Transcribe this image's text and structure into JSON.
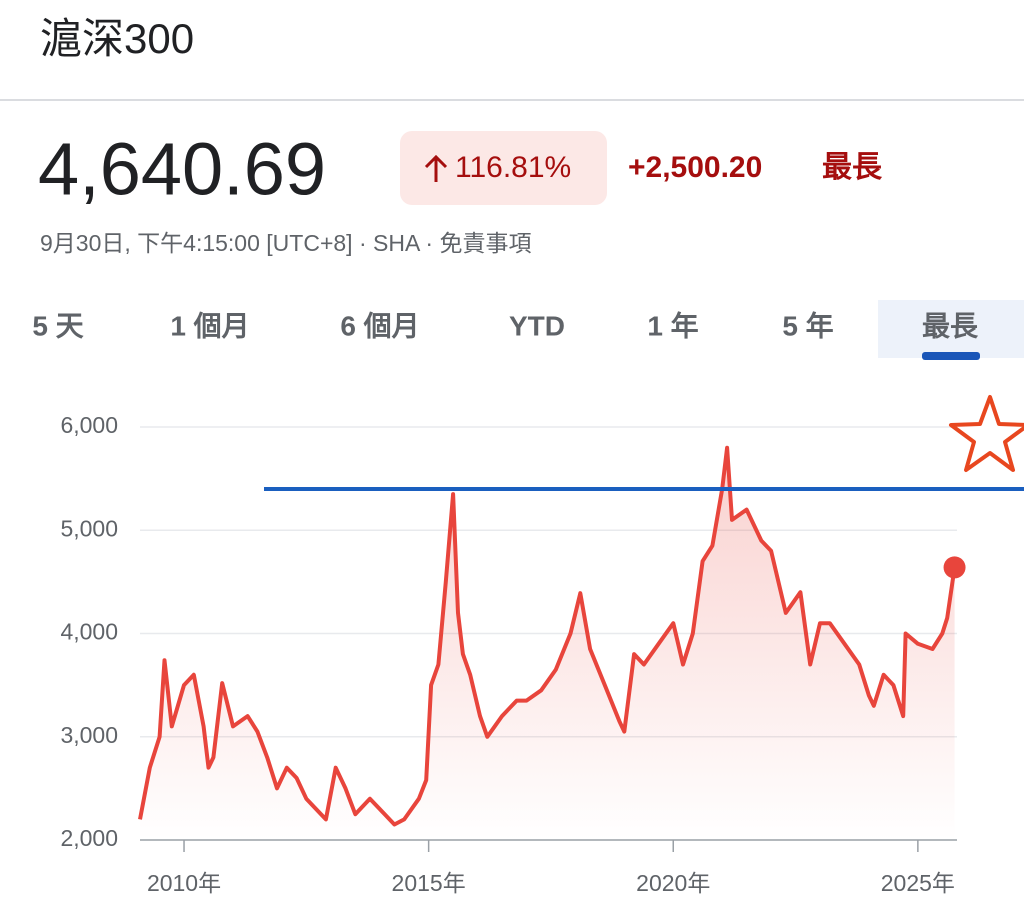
{
  "header": {
    "title": "滬深300"
  },
  "quote": {
    "price": "4,640.69",
    "change_percent": "116.81%",
    "change": "+2,500.20",
    "period": "最長",
    "subtitle": "9月30日, 下午4:15:00 [UTC+8] · SHA · 免責事項"
  },
  "tabs": {
    "items": [
      "5 天",
      "1 個月",
      "6 個月",
      "YTD",
      "1 年",
      "5 年",
      "最長"
    ],
    "selected": 6
  },
  "chart_data": {
    "type": "line",
    "x": [
      2009.1,
      2009.3,
      2009.5,
      2009.6,
      2009.75,
      2010.0,
      2010.2,
      2010.4,
      2010.5,
      2010.6,
      2010.78,
      2011.0,
      2011.3,
      2011.5,
      2011.7,
      2011.9,
      2012.1,
      2012.3,
      2012.5,
      2012.8,
      2012.9,
      2013.1,
      2013.3,
      2013.5,
      2013.8,
      2014.0,
      2014.3,
      2014.5,
      2014.8,
      2014.95,
      2015.05,
      2015.2,
      2015.35,
      2015.5,
      2015.6,
      2015.7,
      2015.85,
      2016.05,
      2016.2,
      2016.5,
      2016.8,
      2017.0,
      2017.3,
      2017.6,
      2017.9,
      2018.1,
      2018.3,
      2018.6,
      2018.9,
      2019.0,
      2019.2,
      2019.4,
      2019.7,
      2020.0,
      2020.2,
      2020.4,
      2020.6,
      2020.8,
      2021.0,
      2021.1,
      2021.2,
      2021.5,
      2021.8,
      2022.0,
      2022.3,
      2022.6,
      2022.8,
      2023.0,
      2023.2,
      2023.5,
      2023.8,
      2024.0,
      2024.1,
      2024.3,
      2024.5,
      2024.7,
      2024.75,
      2025.0,
      2025.3,
      2025.5,
      2025.6,
      2025.75
    ],
    "series": [
      {
        "color": "#e8453c",
        "values": [
          2200,
          2700,
          3000,
          3740,
          3100,
          3500,
          3600,
          3100,
          2700,
          2800,
          3520,
          3100,
          3200,
          3050,
          2800,
          2500,
          2700,
          2600,
          2400,
          2250,
          2200,
          2700,
          2500,
          2250,
          2400,
          2300,
          2150,
          2200,
          2400,
          2580,
          3500,
          3700,
          4500,
          5350,
          4200,
          3800,
          3600,
          3200,
          3000,
          3200,
          3350,
          3350,
          3450,
          3650,
          4000,
          4390,
          3850,
          3500,
          3150,
          3050,
          3800,
          3700,
          3900,
          4100,
          3700,
          4000,
          4700,
          4850,
          5400,
          5800,
          5100,
          5200,
          4900,
          4800,
          4200,
          4400,
          3700,
          4100,
          4100,
          3900,
          3700,
          3400,
          3300,
          3600,
          3500,
          3200,
          4000,
          3900,
          3850,
          4000,
          4150,
          4640
        ]
      }
    ],
    "xlim": [
      2009.1,
      2025.8
    ],
    "xticks": [
      {
        "value": 2010,
        "label": "2010年"
      },
      {
        "value": 2015,
        "label": "2015年"
      },
      {
        "value": 2020,
        "label": "2020年"
      },
      {
        "value": 2025,
        "label": "2025年"
      }
    ],
    "ylim": [
      2000,
      6000
    ],
    "yticks": [
      {
        "value": 2000,
        "label": "2,000"
      },
      {
        "value": 3000,
        "label": "3,000"
      },
      {
        "value": 4000,
        "label": "4,000"
      },
      {
        "value": 5000,
        "label": "5,000"
      },
      {
        "value": 6000,
        "label": "6,000"
      }
    ],
    "reference_line": {
      "value": 5400,
      "color": "#1a5fbf"
    },
    "grid": true
  }
}
